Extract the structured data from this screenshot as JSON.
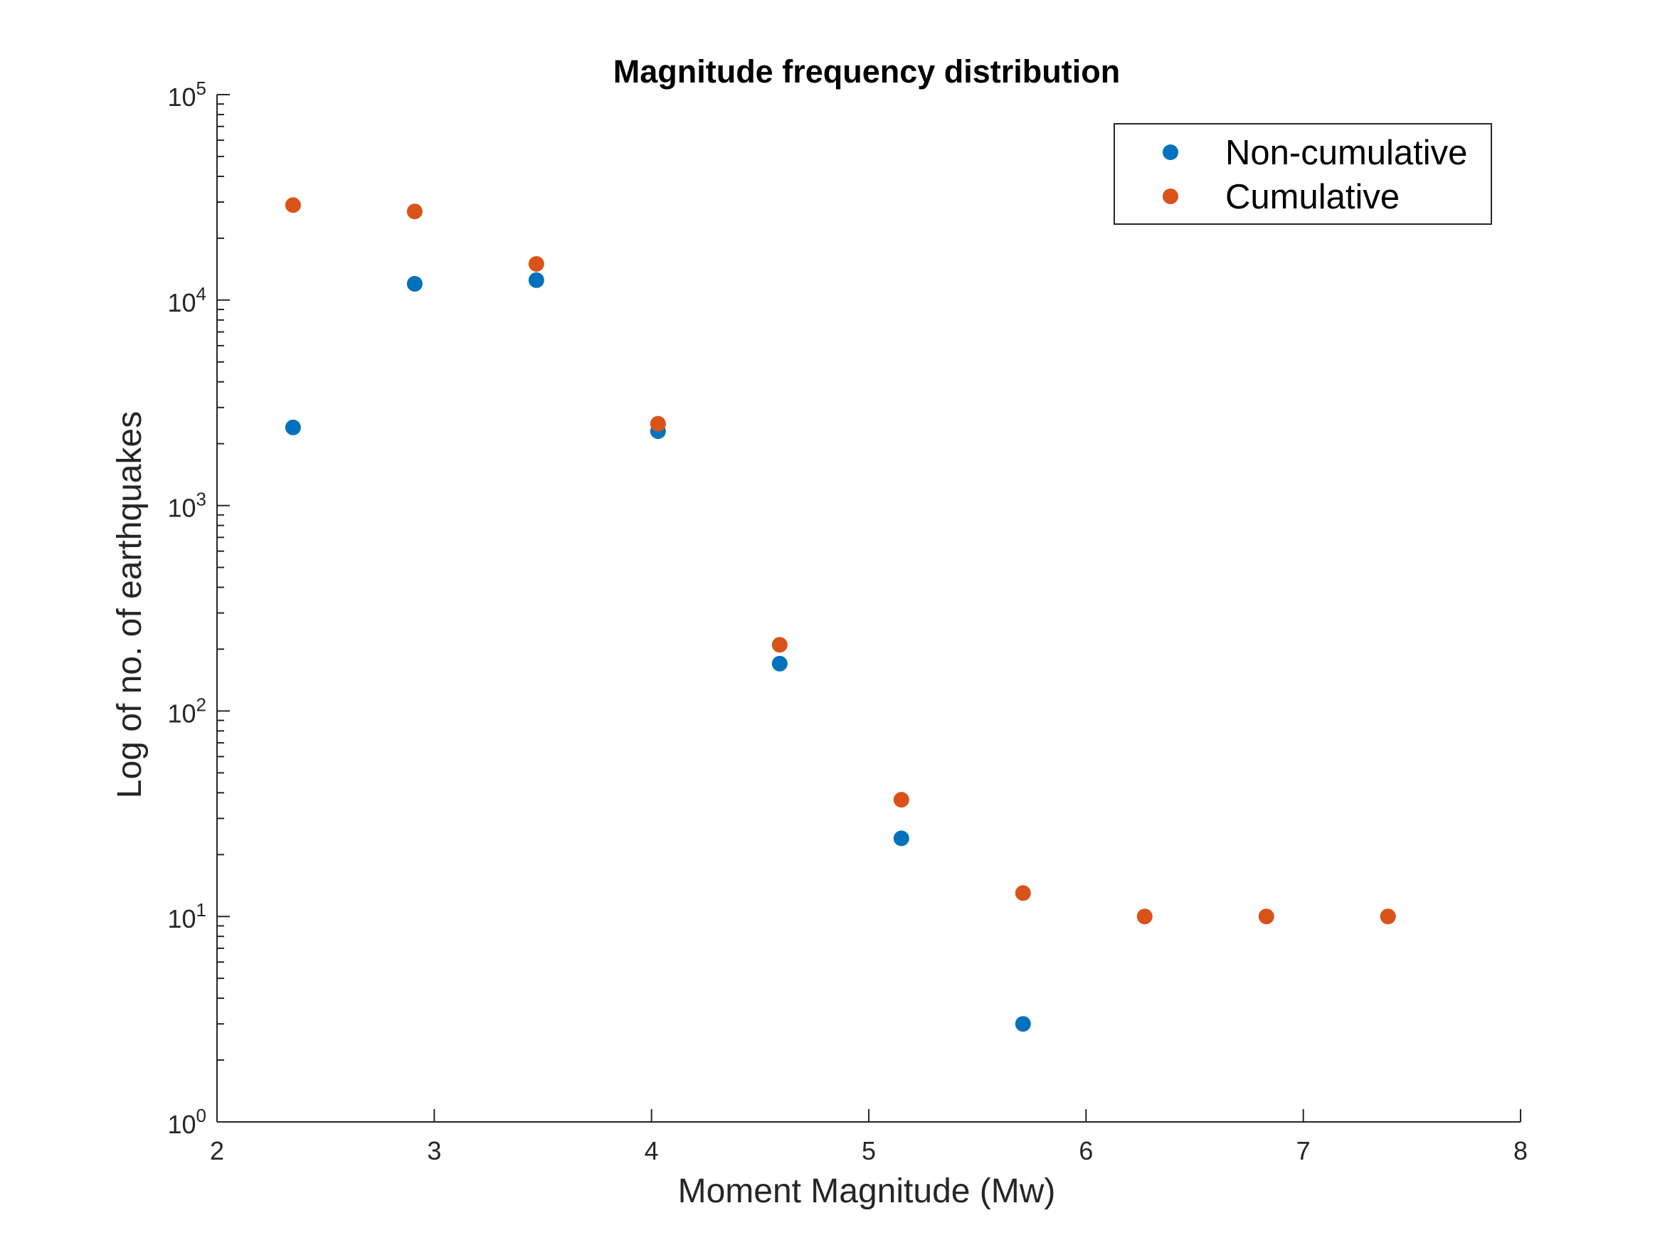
{
  "chart_data": {
    "type": "scatter",
    "title": "Magnitude frequency distribution",
    "xlabel": "Moment Magnitude (Mw)",
    "ylabel": "Log of no. of earthquakes",
    "xlim": [
      2,
      8
    ],
    "ylim": [
      1,
      100000
    ],
    "yscale": "log",
    "x_ticks": [
      "2",
      "3",
      "4",
      "5",
      "6",
      "7",
      "8"
    ],
    "y_ticks": [
      {
        "base": "10",
        "exp": "0",
        "value": 1
      },
      {
        "base": "10",
        "exp": "1",
        "value": 10
      },
      {
        "base": "10",
        "exp": "2",
        "value": 100
      },
      {
        "base": "10",
        "exp": "3",
        "value": 1000
      },
      {
        "base": "10",
        "exp": "4",
        "value": 10000
      },
      {
        "base": "10",
        "exp": "5",
        "value": 100000
      }
    ],
    "grid": false,
    "legend_position": "top-right",
    "series": [
      {
        "name": "Non-cumulative",
        "color": "#0072BD",
        "x": [
          2.35,
          2.91,
          3.47,
          4.03,
          4.59,
          5.15,
          5.71
        ],
        "y": [
          2400,
          12000,
          12500,
          2300,
          170,
          24,
          3
        ]
      },
      {
        "name": "Cumulative",
        "color": "#D95319",
        "x": [
          2.35,
          2.91,
          3.47,
          4.03,
          4.59,
          5.15,
          5.71,
          6.27,
          6.83,
          7.39
        ],
        "y": [
          29000,
          27000,
          15000,
          2500,
          210,
          37,
          13,
          10,
          10,
          10
        ]
      }
    ]
  }
}
